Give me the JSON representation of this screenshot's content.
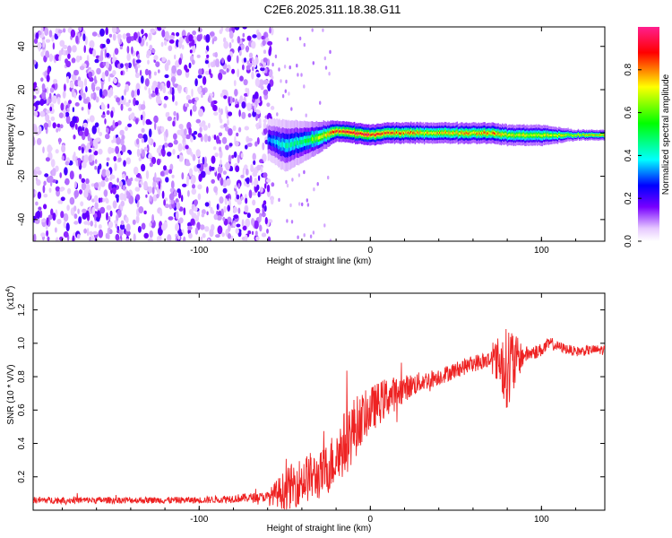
{
  "title": "C2E6.2025.311.18.38.G11",
  "chart_data": [
    {
      "type": "heatmap",
      "name": "spectrogram",
      "xlabel": "Height of straight line (km)",
      "ylabel": "Frequency (Hz)",
      "xlim": [
        -197,
        137
      ],
      "ylim": [
        -50,
        49
      ],
      "xticks": [
        -100,
        0,
        100
      ],
      "yticks": [
        -40,
        -20,
        0,
        20,
        40
      ],
      "noise_region_x": [
        -197,
        -57
      ],
      "signal_band": {
        "x": [
          -60,
          -50,
          -40,
          -30,
          -20,
          -10,
          0,
          10,
          20,
          40,
          60,
          70,
          80,
          100,
          120,
          137
        ],
        "center_hz": [
          -3,
          -6,
          -4,
          -2,
          1,
          0,
          -1,
          0,
          0,
          0,
          0,
          0,
          -1,
          -1,
          -1,
          -1
        ],
        "half_width_hz": [
          4,
          5,
          4,
          3,
          2,
          2,
          2,
          2,
          2,
          2,
          2,
          2,
          2,
          2,
          1,
          1
        ],
        "peak_amplitude": [
          0.35,
          0.45,
          0.5,
          0.7,
          0.9,
          0.95,
          0.95,
          0.9,
          0.85,
          0.8,
          0.8,
          0.85,
          0.75,
          0.7,
          0.75,
          0.8
        ]
      },
      "colorbar": {
        "label": "Normalized spectral amplitude",
        "range": [
          0,
          1
        ],
        "ticks": [
          "0.0",
          "0.2",
          "0.4",
          "0.6",
          "0.8"
        ],
        "colors": [
          "#ffffff",
          "#7700ff",
          "#0000ff",
          "#00ffff",
          "#00ff00",
          "#ffff00",
          "#ff0000",
          "#ff1f8f"
        ]
      }
    },
    {
      "type": "line",
      "name": "snr",
      "xlabel": "Height of straight line (km)",
      "ylabel": "SNR (10 * V/V)",
      "scale_note": "(x10",
      "scale_exp": "4",
      "xlim": [
        -197,
        137
      ],
      "ylim": [
        0.0,
        1.3
      ],
      "xticks": [
        -100,
        0,
        100
      ],
      "yticks": [
        "0.2",
        "0.4",
        "0.6",
        "0.8",
        "1.0",
        "1.2"
      ],
      "color": "#ee2222",
      "envelope": {
        "x": [
          -197,
          -150,
          -100,
          -60,
          -55,
          -50,
          -45,
          -40,
          -35,
          -30,
          -25,
          -20,
          -15,
          -10,
          -5,
          0,
          5,
          10,
          15,
          20,
          25,
          30,
          40,
          50,
          60,
          70,
          75,
          80,
          82,
          85,
          90,
          100,
          105,
          110,
          120,
          130,
          137
        ],
        "mean": [
          0.06,
          0.06,
          0.06,
          0.08,
          0.1,
          0.12,
          0.15,
          0.18,
          0.2,
          0.2,
          0.25,
          0.32,
          0.4,
          0.48,
          0.55,
          0.6,
          0.64,
          0.68,
          0.7,
          0.73,
          0.75,
          0.77,
          0.8,
          0.84,
          0.88,
          0.9,
          0.9,
          0.85,
          0.85,
          0.9,
          0.93,
          0.96,
          1.0,
          0.98,
          0.95,
          0.96,
          0.96
        ],
        "amp": [
          0.02,
          0.02,
          0.02,
          0.03,
          0.08,
          0.12,
          0.14,
          0.14,
          0.15,
          0.14,
          0.16,
          0.18,
          0.2,
          0.2,
          0.15,
          0.14,
          0.13,
          0.12,
          0.1,
          0.08,
          0.07,
          0.06,
          0.05,
          0.05,
          0.05,
          0.06,
          0.15,
          0.25,
          0.3,
          0.15,
          0.05,
          0.04,
          0.04,
          0.03,
          0.03,
          0.03,
          0.03
        ]
      }
    }
  ]
}
